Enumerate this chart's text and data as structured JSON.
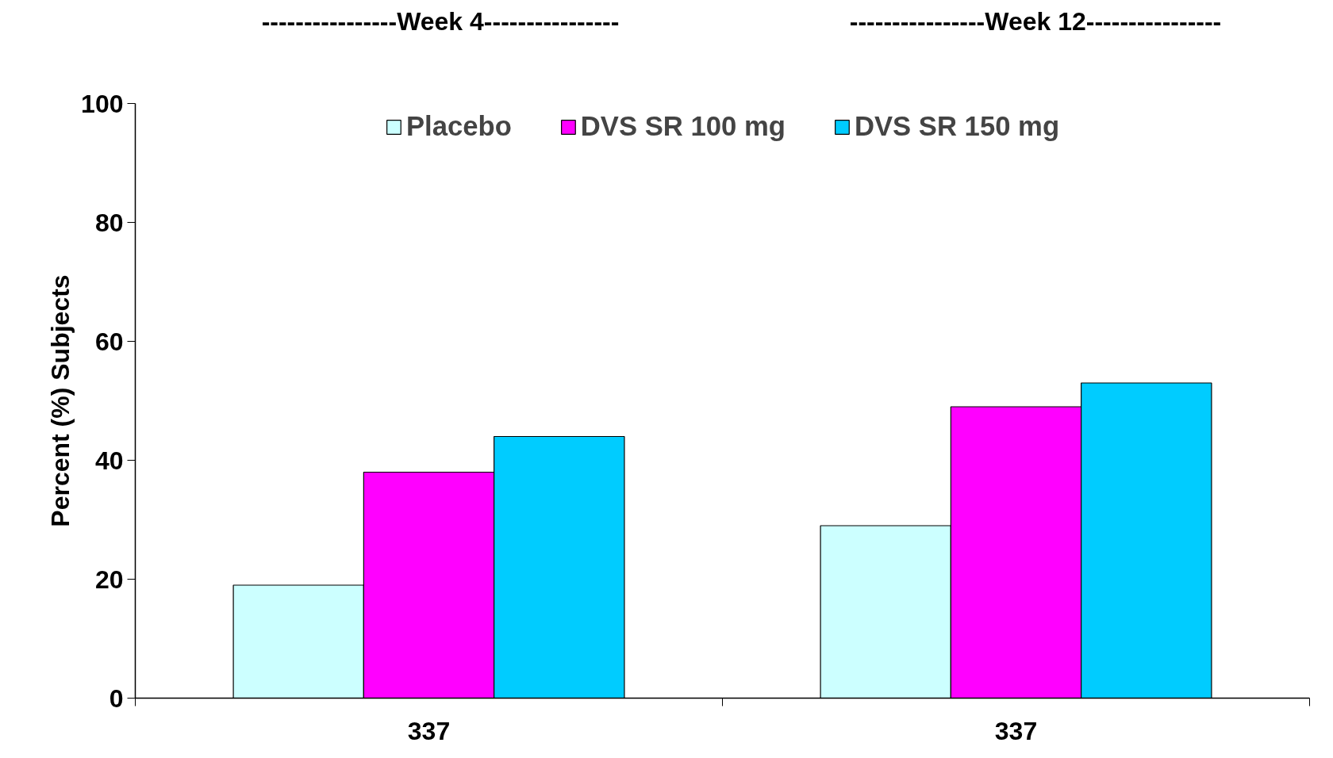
{
  "chart_data": {
    "type": "bar",
    "categories": [
      "337",
      "337"
    ],
    "ylabel": "Percent (%) Subjects",
    "annotations": [
      "----------------Week 4----------------",
      "----------------Week 12----------------"
    ],
    "series": [
      {
        "name": "Placebo",
        "color": "#ccffff",
        "values": [
          19,
          29
        ]
      },
      {
        "name": "DVS SR 100 mg",
        "color": "#ff00ff",
        "values": [
          38,
          49
        ]
      },
      {
        "name": "DVS SR 150 mg",
        "color": "#00ccff",
        "values": [
          44,
          53
        ]
      }
    ],
    "ylim": [
      0,
      100
    ],
    "yticks": [
      0,
      20,
      40,
      60,
      80,
      100
    ],
    "grid": false,
    "legend": "top"
  }
}
